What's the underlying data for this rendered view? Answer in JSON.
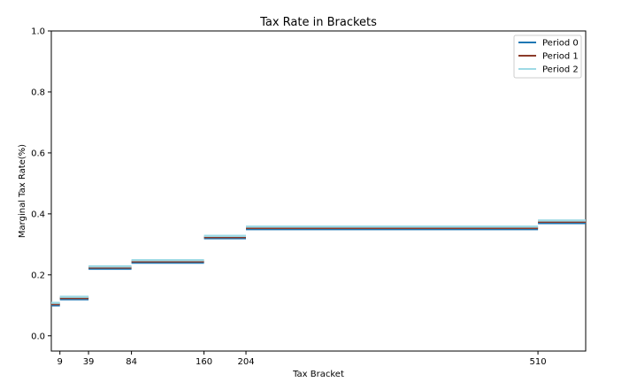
{
  "chart_data": {
    "type": "line",
    "title": "Tax Rate in Brackets",
    "xlabel": "Tax Bracket",
    "ylabel": "Marginal Tax Rate(%)",
    "xlim": [
      0,
      560
    ],
    "ylim": [
      -0.05,
      1.0
    ],
    "xticks": [
      9,
      39,
      84,
      160,
      204,
      510
    ],
    "yticks": [
      0.0,
      0.2,
      0.4,
      0.6,
      0.8,
      1.0
    ],
    "ytick_labels": [
      "0.0",
      "0.2",
      "0.4",
      "0.6",
      "0.8",
      "1.0"
    ],
    "grid": false,
    "legend_position": "top-right",
    "brackets": [
      [
        0,
        9
      ],
      [
        9,
        39
      ],
      [
        39,
        84
      ],
      [
        84,
        160
      ],
      [
        160,
        204
      ],
      [
        204,
        510
      ],
      [
        510,
        560
      ]
    ],
    "series": [
      {
        "name": "Period 0",
        "color": "#1f77b4",
        "values": [
          0.1,
          0.12,
          0.22,
          0.24,
          0.32,
          0.35,
          0.37
        ]
      },
      {
        "name": "Period 1",
        "color": "#8c3b2a",
        "values": [
          0.104,
          0.124,
          0.224,
          0.244,
          0.324,
          0.354,
          0.374
        ]
      },
      {
        "name": "Period 2",
        "color": "#9edae5",
        "values": [
          0.108,
          0.128,
          0.228,
          0.248,
          0.328,
          0.358,
          0.378
        ]
      }
    ]
  }
}
